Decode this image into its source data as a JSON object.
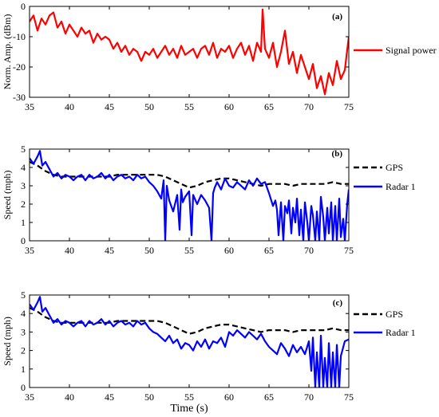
{
  "x_axis_label": "Time (s)",
  "chart_data": [
    {
      "type": "line",
      "panel": "(a)",
      "ylabel": "Norm. Amp. (dBm)",
      "xlim": [
        35,
        75
      ],
      "ylim": [
        -30,
        0
      ],
      "xticks": [
        35,
        40,
        45,
        50,
        55,
        60,
        65,
        70,
        75
      ],
      "yticks": [
        0,
        -10,
        -20,
        -30
      ],
      "legend": [
        {
          "name": "Signal power",
          "color": "#ff0000",
          "style": "solid"
        }
      ],
      "series": [
        {
          "name": "Signal power",
          "color": "#ff0000",
          "x": [
            35.0,
            35.5,
            36.0,
            36.5,
            37.0,
            37.5,
            38.0,
            38.5,
            39.0,
            39.5,
            40.0,
            40.5,
            41.0,
            41.5,
            42.0,
            42.5,
            43.0,
            43.5,
            44.0,
            44.5,
            45.0,
            45.5,
            46.0,
            46.5,
            47.0,
            47.5,
            48.0,
            48.5,
            49.0,
            49.5,
            50.0,
            50.5,
            51.0,
            51.5,
            52.0,
            52.5,
            53.0,
            53.5,
            54.0,
            54.5,
            55.0,
            55.5,
            56.0,
            56.5,
            57.0,
            57.5,
            58.0,
            58.5,
            59.0,
            59.5,
            60.0,
            60.5,
            61.0,
            61.5,
            62.0,
            62.5,
            63.0,
            63.5,
            64.0,
            64.2,
            64.5,
            65.0,
            65.5,
            66.0,
            66.5,
            67.0,
            67.5,
            68.0,
            68.5,
            69.0,
            69.5,
            70.0,
            70.5,
            71.0,
            71.5,
            72.0,
            72.5,
            73.0,
            73.5,
            74.0,
            74.5,
            75.0
          ],
          "y": [
            -5,
            -3,
            -8,
            -4,
            -6,
            -3,
            -2,
            -7,
            -5,
            -9,
            -6,
            -8,
            -10,
            -7,
            -9,
            -8,
            -12,
            -9,
            -11,
            -10,
            -11,
            -14,
            -12,
            -15,
            -13,
            -16,
            -14,
            -15,
            -18,
            -15,
            -16,
            -14,
            -17,
            -15,
            -13,
            -16,
            -14,
            -17,
            -13,
            -16,
            -15,
            -14,
            -17,
            -14,
            -13,
            -16,
            -12,
            -17,
            -14,
            -15,
            -13,
            -17,
            -14,
            -12,
            -16,
            -13,
            -18,
            -12,
            -15,
            -1,
            -14,
            -17,
            -12,
            -20,
            -15,
            -8,
            -19,
            -15,
            -22,
            -16,
            -20,
            -24,
            -19,
            -27,
            -23,
            -29,
            -22,
            -26,
            -18,
            -24,
            -21,
            -10
          ]
        }
      ]
    },
    {
      "type": "line",
      "panel": "(b)",
      "ylabel": "Speed (mph)",
      "xlim": [
        35,
        75
      ],
      "ylim": [
        0,
        5
      ],
      "xticks": [
        35,
        40,
        45,
        50,
        55,
        60,
        65,
        70,
        75
      ],
      "yticks": [
        0,
        1,
        2,
        3,
        4,
        5
      ],
      "legend": [
        {
          "name": "GPS",
          "color": "#000000",
          "style": "dashed"
        },
        {
          "name": "Radar 1",
          "color": "#0000ff",
          "style": "solid"
        }
      ],
      "series": [
        {
          "name": "GPS",
          "color": "#000000",
          "style": "dashed",
          "x": [
            35,
            36,
            37,
            38,
            39,
            40,
            41,
            42,
            43,
            44,
            45,
            46,
            47,
            48,
            49,
            50,
            51,
            52,
            53,
            54,
            55,
            56,
            57,
            58,
            59,
            60,
            61,
            62,
            63,
            64,
            65,
            66,
            67,
            68,
            69,
            70,
            71,
            72,
            73,
            74,
            75
          ],
          "y": [
            4.3,
            4.1,
            3.8,
            3.6,
            3.5,
            3.5,
            3.5,
            3.5,
            3.5,
            3.5,
            3.5,
            3.6,
            3.6,
            3.6,
            3.6,
            3.6,
            3.6,
            3.5,
            3.3,
            3.1,
            2.9,
            3.0,
            3.2,
            3.3,
            3.4,
            3.4,
            3.3,
            3.2,
            3.1,
            3.0,
            3.1,
            3.1,
            3.1,
            3.0,
            3.1,
            3.1,
            3.1,
            3.1,
            3.2,
            3.1,
            3.1
          ]
        },
        {
          "name": "Radar 1",
          "color": "#0000ff",
          "style": "solid",
          "x": [
            35.0,
            35.5,
            36.0,
            36.3,
            36.6,
            37.0,
            37.5,
            38.0,
            38.5,
            39.0,
            39.5,
            40.0,
            40.5,
            41.0,
            41.5,
            42.0,
            42.5,
            43.0,
            43.5,
            44.0,
            44.5,
            45.0,
            45.5,
            46.0,
            46.5,
            47.0,
            47.5,
            48.0,
            48.5,
            49.0,
            49.5,
            50.0,
            50.5,
            51.0,
            51.5,
            51.8,
            52.0,
            52.2,
            52.5,
            53.0,
            53.5,
            53.8,
            54.0,
            54.2,
            54.5,
            55.0,
            55.3,
            55.5,
            55.7,
            56.0,
            56.5,
            57.0,
            57.5,
            57.8,
            58.0,
            58.2,
            58.5,
            59.0,
            59.5,
            60.0,
            60.5,
            61.0,
            61.5,
            62.0,
            62.5,
            63.0,
            63.5,
            64.0,
            64.5,
            65.0,
            65.5,
            65.8,
            66.0,
            66.2,
            66.5,
            66.8,
            67.0,
            67.3,
            67.5,
            67.8,
            68.0,
            68.3,
            68.5,
            68.8,
            69.0,
            69.3,
            69.5,
            69.8,
            70.0,
            70.3,
            70.5,
            70.8,
            71.0,
            71.3,
            71.5,
            71.8,
            72.0,
            72.3,
            72.5,
            72.8,
            73.0,
            73.3,
            73.5,
            73.8,
            74.0,
            74.3,
            74.5,
            74.8,
            75.0
          ],
          "y": [
            4.5,
            4.2,
            4.6,
            4.9,
            4.1,
            4.3,
            3.9,
            3.5,
            3.7,
            3.4,
            3.6,
            3.5,
            3.3,
            3.5,
            3.6,
            3.3,
            3.6,
            3.4,
            3.5,
            3.7,
            3.4,
            3.6,
            3.3,
            3.5,
            3.6,
            3.4,
            3.5,
            3.3,
            3.6,
            3.4,
            3.5,
            3.2,
            3.0,
            2.7,
            2.3,
            3.3,
            0.0,
            3.0,
            2.2,
            1.6,
            2.5,
            0.6,
            2.8,
            2.1,
            2.4,
            2.7,
            0.3,
            2.5,
            2.3,
            2.0,
            2.5,
            2.2,
            1.8,
            0.0,
            2.6,
            2.9,
            3.2,
            2.8,
            3.4,
            3.0,
            2.9,
            3.2,
            3.0,
            2.8,
            3.3,
            3.0,
            3.4,
            3.1,
            3.2,
            2.6,
            1.9,
            2.2,
            1.7,
            0.3,
            2.1,
            0.0,
            1.9,
            1.5,
            2.2,
            0.4,
            1.8,
            1.0,
            2.3,
            0.3,
            1.7,
            0.0,
            2.1,
            1.0,
            0.0,
            1.9,
            1.4,
            0.0,
            1.6,
            0.0,
            2.4,
            1.3,
            0.0,
            1.8,
            0.4,
            2.1,
            0.0,
            1.9,
            0.0,
            2.3,
            0.2,
            1.2,
            0.0,
            2.0,
            2.8
          ]
        }
      ]
    },
    {
      "type": "line",
      "panel": "(c)",
      "ylabel": "Speed (mph)",
      "xlabel": "Time (s)",
      "xlim": [
        35,
        75
      ],
      "ylim": [
        0,
        5
      ],
      "xticks": [
        35,
        40,
        45,
        50,
        55,
        60,
        65,
        70,
        75
      ],
      "yticks": [
        0,
        1,
        2,
        3,
        4,
        5
      ],
      "legend": [
        {
          "name": "GPS",
          "color": "#000000",
          "style": "dashed"
        },
        {
          "name": "Radar 1",
          "color": "#0000ff",
          "style": "solid"
        }
      ],
      "series": [
        {
          "name": "GPS",
          "color": "#000000",
          "style": "dashed",
          "x": [
            35,
            36,
            37,
            38,
            39,
            40,
            41,
            42,
            43,
            44,
            45,
            46,
            47,
            48,
            49,
            50,
            51,
            52,
            53,
            54,
            55,
            56,
            57,
            58,
            59,
            60,
            61,
            62,
            63,
            64,
            65,
            66,
            67,
            68,
            69,
            70,
            71,
            72,
            73,
            74,
            75
          ],
          "y": [
            4.3,
            4.1,
            3.8,
            3.6,
            3.5,
            3.5,
            3.5,
            3.5,
            3.5,
            3.5,
            3.5,
            3.6,
            3.6,
            3.6,
            3.6,
            3.6,
            3.6,
            3.5,
            3.3,
            3.1,
            2.9,
            3.0,
            3.2,
            3.3,
            3.4,
            3.4,
            3.3,
            3.2,
            3.1,
            3.0,
            3.1,
            3.1,
            3.1,
            3.0,
            3.1,
            3.1,
            3.1,
            3.1,
            3.2,
            3.1,
            3.1
          ]
        },
        {
          "name": "Radar 1",
          "color": "#0000ff",
          "style": "solid",
          "x": [
            35.0,
            35.5,
            36.0,
            36.3,
            36.6,
            37.0,
            37.5,
            38.0,
            38.5,
            39.0,
            39.5,
            40.0,
            40.5,
            41.0,
            41.5,
            42.0,
            42.5,
            43.0,
            43.5,
            44.0,
            44.5,
            45.0,
            45.5,
            46.0,
            46.5,
            47.0,
            47.5,
            48.0,
            48.5,
            49.0,
            49.5,
            50.0,
            50.5,
            51.0,
            51.5,
            52.0,
            52.5,
            53.0,
            53.5,
            54.0,
            54.5,
            55.0,
            55.5,
            56.0,
            56.5,
            57.0,
            57.5,
            58.0,
            58.5,
            59.0,
            59.5,
            60.0,
            60.5,
            61.0,
            61.5,
            62.0,
            62.5,
            63.0,
            63.5,
            64.0,
            64.5,
            65.0,
            65.5,
            66.0,
            66.5,
            67.0,
            67.5,
            68.0,
            68.5,
            69.0,
            69.5,
            70.0,
            70.3,
            70.5,
            70.8,
            71.0,
            71.3,
            71.5,
            71.8,
            72.0,
            72.3,
            72.5,
            72.8,
            73.0,
            73.3,
            73.5,
            73.8,
            74.0,
            74.5,
            75.0
          ],
          "y": [
            4.5,
            4.2,
            4.6,
            4.9,
            4.1,
            4.3,
            3.9,
            3.5,
            3.7,
            3.4,
            3.6,
            3.5,
            3.3,
            3.5,
            3.6,
            3.3,
            3.6,
            3.4,
            3.5,
            3.7,
            3.4,
            3.6,
            3.3,
            3.5,
            3.6,
            3.4,
            3.5,
            3.3,
            3.6,
            3.4,
            3.5,
            3.2,
            3.0,
            2.9,
            2.7,
            2.5,
            2.8,
            2.4,
            2.6,
            2.1,
            2.4,
            2.3,
            2.0,
            2.5,
            2.2,
            2.6,
            2.1,
            2.5,
            2.4,
            2.7,
            2.2,
            3.0,
            2.8,
            3.1,
            2.9,
            2.7,
            3.0,
            2.8,
            2.6,
            2.9,
            2.5,
            2.2,
            2.0,
            1.8,
            2.4,
            2.1,
            1.7,
            2.3,
            1.9,
            2.2,
            1.8,
            2.5,
            0.9,
            2.7,
            0.0,
            1.9,
            0.0,
            2.8,
            0.0,
            1.6,
            0.0,
            2.4,
            0.0,
            1.9,
            0.0,
            2.3,
            0.0,
            1.7,
            2.5,
            2.6
          ]
        }
      ]
    }
  ]
}
